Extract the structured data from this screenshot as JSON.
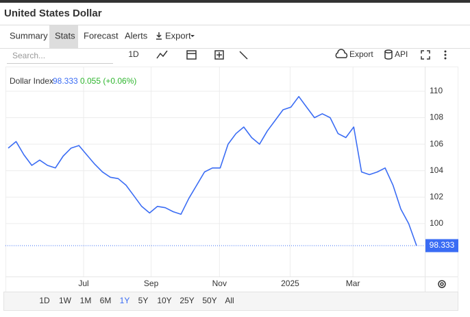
{
  "header": {
    "title": "United States Dollar"
  },
  "tabs": [
    "Summary",
    "Stats",
    "Forecast",
    "Alerts",
    "Export"
  ],
  "active_tab": "Stats",
  "toolbar": {
    "search_placeholder": "Search...",
    "interval": "1D",
    "export": "Export",
    "api": "API"
  },
  "ranges": [
    "1D",
    "1W",
    "1M",
    "6M",
    "1Y",
    "5Y",
    "10Y",
    "25Y",
    "50Y",
    "All"
  ],
  "active_range": "1Y",
  "chart_data": {
    "type": "line",
    "change": "0.055 (+0.06%)",
    "xlim": [
      -0.35,
      53.05
    ],
    "xticks": [
      {
        "value": 9.6,
        "label": "Jul"
      },
      {
        "value": 18.2,
        "label": "Sep"
      },
      {
        "value": 26.9,
        "label": "Nov"
      },
      {
        "value": 35.9,
        "label": "2025"
      },
      {
        "value": 43.9,
        "label": "Mar"
      }
    ],
    "ylim": [
      96,
      112
    ],
    "yticks": [
      100,
      102,
      104,
      106,
      108,
      110
    ],
    "grid": true,
    "series": [
      {
        "name": "Dollar Index",
        "color": "#3a6cf4",
        "values": [
          105.7,
          106.2,
          105.2,
          104.4,
          104.8,
          104.4,
          104.2,
          105.1,
          105.7,
          105.9,
          105.2,
          104.5,
          103.9,
          103.5,
          103.4,
          102.9,
          102.1,
          101.3,
          100.8,
          101.3,
          101.2,
          100.9,
          100.7,
          101.9,
          102.9,
          103.9,
          104.2,
          104.2,
          106.0,
          106.8,
          107.3,
          106.5,
          106.0,
          107.0,
          107.8,
          108.6,
          108.8,
          109.6,
          108.8,
          108.0,
          108.3,
          108.0,
          106.8,
          106.5,
          107.3,
          103.9,
          103.7,
          103.9,
          104.2,
          102.9,
          101.1,
          100.0,
          98.333
        ]
      }
    ]
  }
}
